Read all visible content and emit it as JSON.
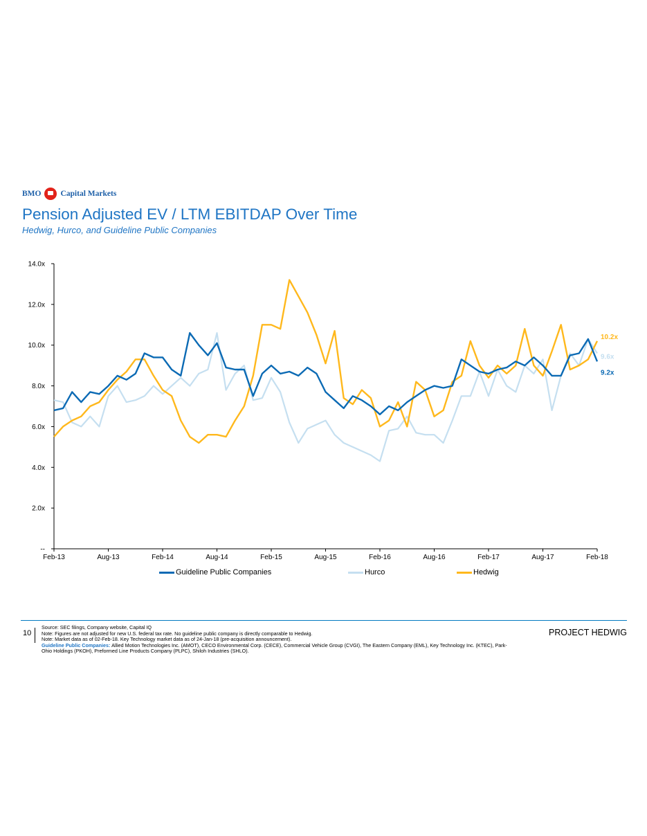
{
  "brand": {
    "left": "BMO",
    "right": "Capital Markets"
  },
  "title": "Pension Adjusted EV / LTM EBITDAP Over Time",
  "subtitle": "Hedwig, Hurco, and Guideline Public Companies",
  "chart_data": {
    "type": "line",
    "title": "Pension Adjusted EV / LTM EBITDAP Over Time",
    "ylim": [
      0,
      14
    ],
    "yticks": [
      "--",
      "2.0x",
      "4.0x",
      "6.0x",
      "8.0x",
      "10.0x",
      "12.0x",
      "14.0x"
    ],
    "xticks": [
      "Feb-13",
      "Aug-13",
      "Feb-14",
      "Aug-14",
      "Feb-15",
      "Aug-15",
      "Feb-16",
      "Aug-16",
      "Feb-17",
      "Aug-17",
      "Feb-18"
    ],
    "x_unit": "months since Feb-13",
    "series": [
      {
        "name": "Hurco",
        "color": "#c5dff0",
        "end_label": "9.6x",
        "values": [
          7.3,
          7.2,
          6.2,
          6.0,
          6.5,
          6.0,
          7.5,
          8.0,
          7.2,
          7.3,
          7.5,
          8.0,
          7.6,
          8.0,
          8.4,
          8.0,
          8.6,
          8.8,
          10.6,
          7.8,
          8.6,
          9.0,
          7.3,
          7.4,
          8.4,
          7.7,
          6.2,
          5.2,
          5.9,
          6.1,
          6.3,
          5.6,
          5.2,
          5.0,
          4.8,
          4.6,
          4.3,
          5.8,
          5.9,
          6.5,
          5.7,
          5.6,
          5.6,
          5.2,
          6.3,
          7.5,
          7.5,
          8.7,
          7.5,
          8.8,
          8.0,
          7.7,
          9.0,
          8.6,
          9.3,
          6.8,
          8.5,
          9.6,
          9.0,
          10.3,
          9.6
        ]
      },
      {
        "name": "Hedwig",
        "color": "#ffb81c",
        "end_label": "10.2x",
        "values": [
          5.5,
          6.0,
          6.3,
          6.5,
          7.0,
          7.2,
          7.8,
          8.3,
          8.7,
          9.3,
          9.3,
          8.5,
          7.8,
          7.5,
          6.3,
          5.5,
          5.2,
          5.6,
          5.6,
          5.5,
          6.3,
          7.0,
          8.5,
          11.0,
          11.0,
          10.8,
          13.2,
          12.4,
          11.6,
          10.5,
          9.1,
          10.7,
          7.4,
          7.1,
          7.8,
          7.4,
          6.0,
          6.3,
          7.2,
          6.0,
          8.2,
          7.8,
          6.5,
          6.8,
          8.2,
          8.5,
          10.2,
          9.0,
          8.4,
          9.0,
          8.6,
          9.0,
          10.8,
          9.0,
          8.5,
          9.7,
          11.0,
          8.8,
          9.0,
          9.3,
          10.2
        ]
      },
      {
        "name": "Guideline Public Companies",
        "color": "#0b6ab4",
        "end_label": "9.2x",
        "values": [
          6.8,
          6.9,
          7.7,
          7.2,
          7.7,
          7.6,
          8.0,
          8.5,
          8.3,
          8.6,
          9.6,
          9.4,
          9.4,
          8.8,
          8.5,
          10.6,
          10.0,
          9.5,
          10.1,
          8.9,
          8.8,
          8.8,
          7.5,
          8.6,
          9.0,
          8.6,
          8.7,
          8.5,
          8.9,
          8.6,
          7.7,
          7.3,
          6.9,
          7.5,
          7.3,
          7.0,
          6.6,
          7.0,
          6.8,
          7.2,
          7.5,
          7.8,
          8.0,
          7.9,
          8.0,
          9.3,
          9.0,
          8.7,
          8.6,
          8.8,
          8.9,
          9.2,
          9.0,
          9.4,
          9.0,
          8.5,
          8.5,
          9.5,
          9.6,
          10.3,
          9.2
        ]
      }
    ],
    "legend": [
      "Guideline Public Companies",
      "Hurco",
      "Hedwig"
    ],
    "legend_position": "bottom"
  },
  "footer": {
    "page": "10",
    "source": "Source: SEC filings, Company website, Capital IQ",
    "note1": "Note: Figures are not adjusted for new U.S. federal tax rate. No guideline public company is directly comparable to Hedwig.",
    "note2": "Note: Market data as of 02-Feb-18. Key Technology market data as of 24-Jan-18 (pre-acquisition announcement).",
    "gpc_label": "Guideline Public Companies:",
    "gpc_text": "Allied Motion Technologies Inc. (AMOT), CECO Environmental Corp. (CECE), Commercial Vehicle Group (CVGI), The Eastern Company (EML), Key Technology Inc. (KTEC), Park-Ohio Holdings (PKOH), Preformed Line Products Company (PLPC), Shiloh Industries (SHLO).",
    "project": "PROJECT HEDWIG"
  }
}
